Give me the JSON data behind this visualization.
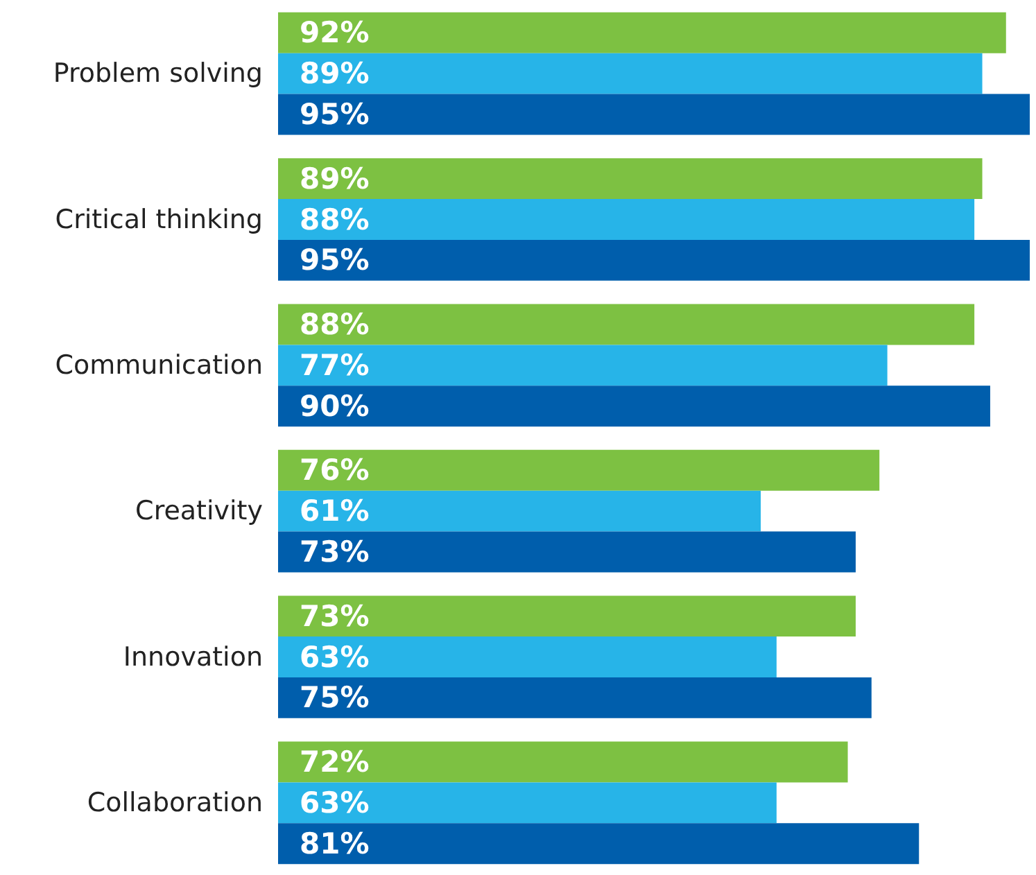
{
  "chart_data": {
    "type": "bar",
    "orientation": "horizontal",
    "relative": false,
    "categories": [
      "Problem solving",
      "Critical thinking",
      "Communication",
      "Creativity",
      "Innovation",
      "Collaboration"
    ],
    "series": [
      {
        "color": "#7dc142",
        "values": [
          92,
          89,
          88,
          76,
          73,
          72
        ],
        "value_labels": [
          "92%",
          "89%",
          "88%",
          "76%",
          "73%",
          "72%"
        ]
      },
      {
        "color": "#27b4e8",
        "values": [
          89,
          88,
          77,
          61,
          63,
          63
        ],
        "value_labels": [
          "89%",
          "88%",
          "77%",
          "61%",
          "63%",
          "63%"
        ]
      },
      {
        "color": "#005eac",
        "values": [
          95,
          95,
          90,
          73,
          75,
          81
        ],
        "value_labels": [
          "95%",
          "95%",
          "90%",
          "73%",
          "75%",
          "81%"
        ]
      }
    ],
    "grid": false,
    "tick_labels": "y"
  }
}
